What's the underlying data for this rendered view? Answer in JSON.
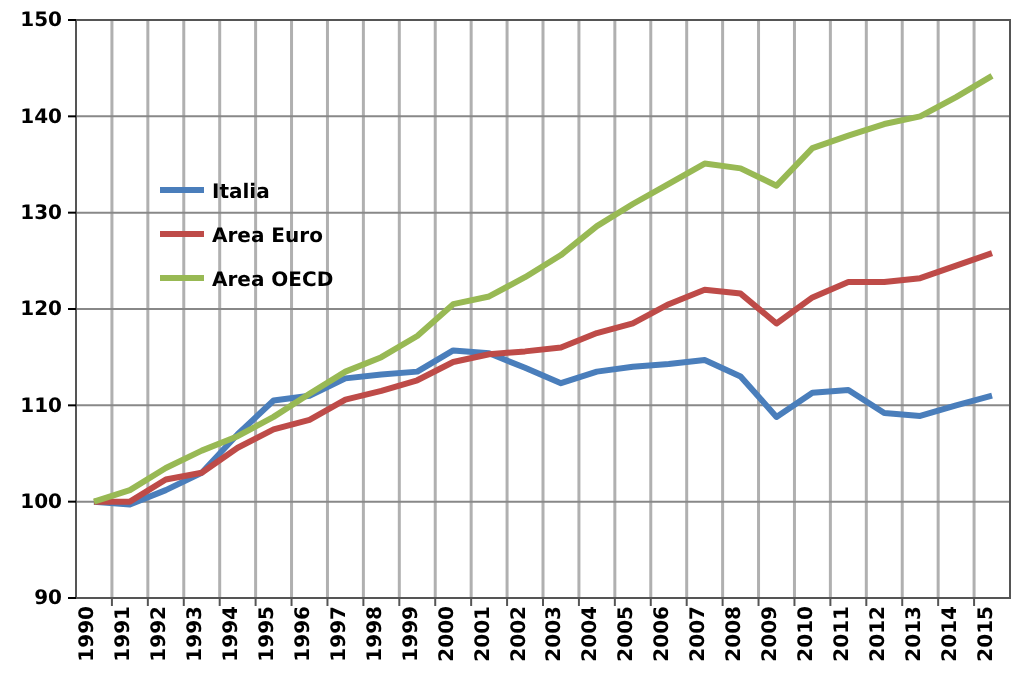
{
  "chart_data": {
    "type": "line",
    "categories": [
      "1990",
      "1991",
      "1992",
      "1993",
      "1994",
      "1995",
      "1996",
      "1997",
      "1998",
      "1999",
      "2000",
      "2001",
      "2002",
      "2003",
      "2004",
      "2005",
      "2006",
      "2007",
      "2008",
      "2009",
      "2010",
      "2011",
      "2012",
      "2013",
      "2014",
      "2015"
    ],
    "series": [
      {
        "name": "Italia",
        "color": "#4a7ebb",
        "values": [
          100,
          99.7,
          101.2,
          103,
          107,
          110.5,
          111,
          112.8,
          113.2,
          113.5,
          115.7,
          115.4,
          113.9,
          112.3,
          113.5,
          114,
          114.3,
          114.7,
          113,
          108.8,
          111.3,
          111.6,
          109.2,
          108.9,
          110,
          111
        ]
      },
      {
        "name": "Area Euro",
        "color": "#be4b48",
        "values": [
          100,
          100,
          102.3,
          103,
          105.6,
          107.5,
          108.5,
          110.6,
          111.5,
          112.6,
          114.5,
          115.3,
          115.6,
          116,
          117.5,
          118.5,
          120.5,
          122,
          121.6,
          118.5,
          121.2,
          122.8,
          122.8,
          123.2,
          124.5,
          125.8
        ]
      },
      {
        "name": "Area OECD",
        "color": "#98b954",
        "values": [
          100,
          101.2,
          103.5,
          105.3,
          106.8,
          108.8,
          111.2,
          113.5,
          115,
          117.2,
          120.5,
          121.3,
          123.3,
          125.6,
          128.6,
          130.9,
          133,
          135.1,
          134.6,
          132.8,
          136.7,
          138,
          139.2,
          140,
          142,
          144.2
        ]
      }
    ],
    "ylim": [
      90,
      150
    ],
    "yticks": [
      90,
      100,
      110,
      120,
      130,
      140,
      150
    ],
    "grid": true,
    "legend": "top left",
    "line_style": "solid"
  }
}
